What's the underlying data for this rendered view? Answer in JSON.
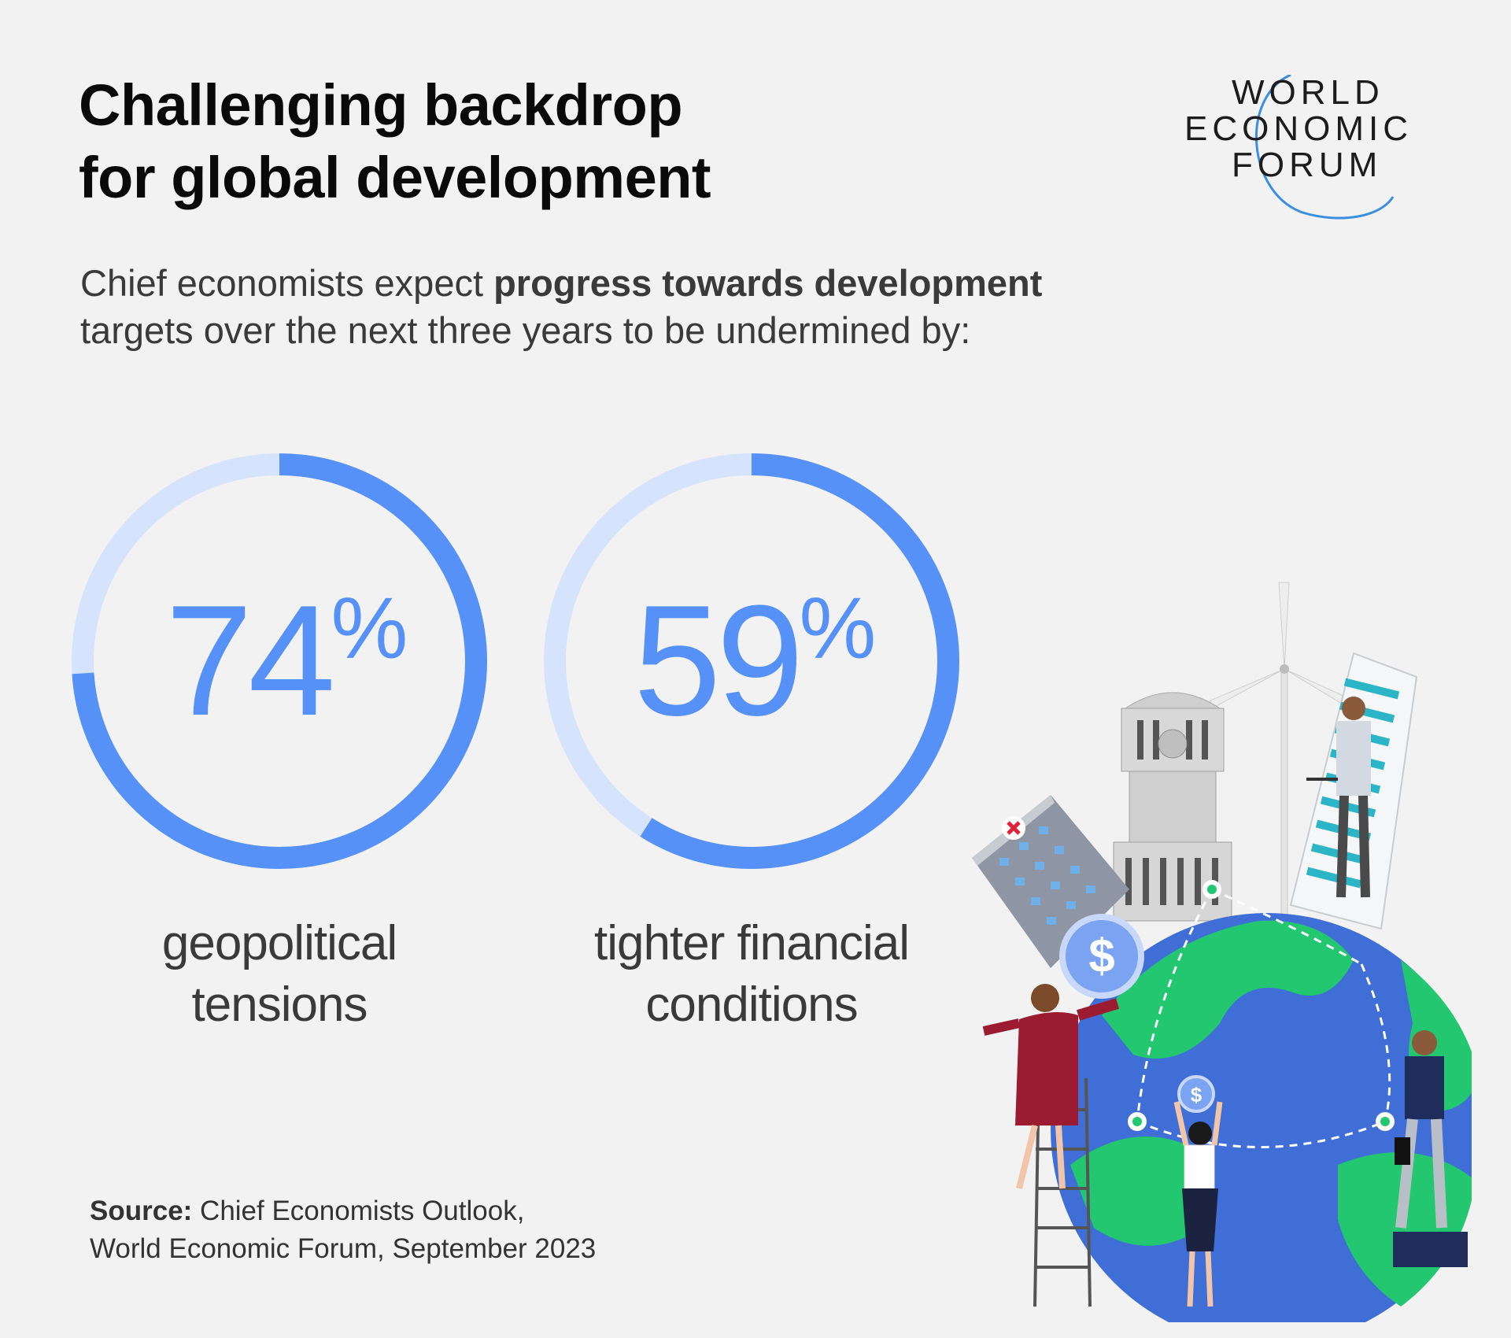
{
  "title": {
    "line1": "Challenging backdrop",
    "line2": "for global development"
  },
  "logo": {
    "line1": "WORLD",
    "line2": "ECONOMIC",
    "line3": "FORUM"
  },
  "subtitle": {
    "prefix": "Chief economists expect ",
    "bold": "progress towards development",
    "line2": "targets over the next three years to be undermined by:"
  },
  "chart_data": {
    "type": "donut",
    "items": [
      {
        "value": 74,
        "label": "74",
        "unit": "%",
        "caption_line1": "geopolitical",
        "caption_line2": "tensions"
      },
      {
        "value": 59,
        "label": "59",
        "unit": "%",
        "caption_line1": "tighter financial",
        "caption_line2": "conditions"
      }
    ]
  },
  "colors": {
    "accent": "#5691f7",
    "track": "#d6e3fc",
    "background": "#f2f2f2"
  },
  "source": {
    "label": "Source:",
    "line1": " Chief Economists Outlook,",
    "line2": "World Economic Forum, September 2023"
  },
  "illustration": "globe-with-people-and-buildings"
}
